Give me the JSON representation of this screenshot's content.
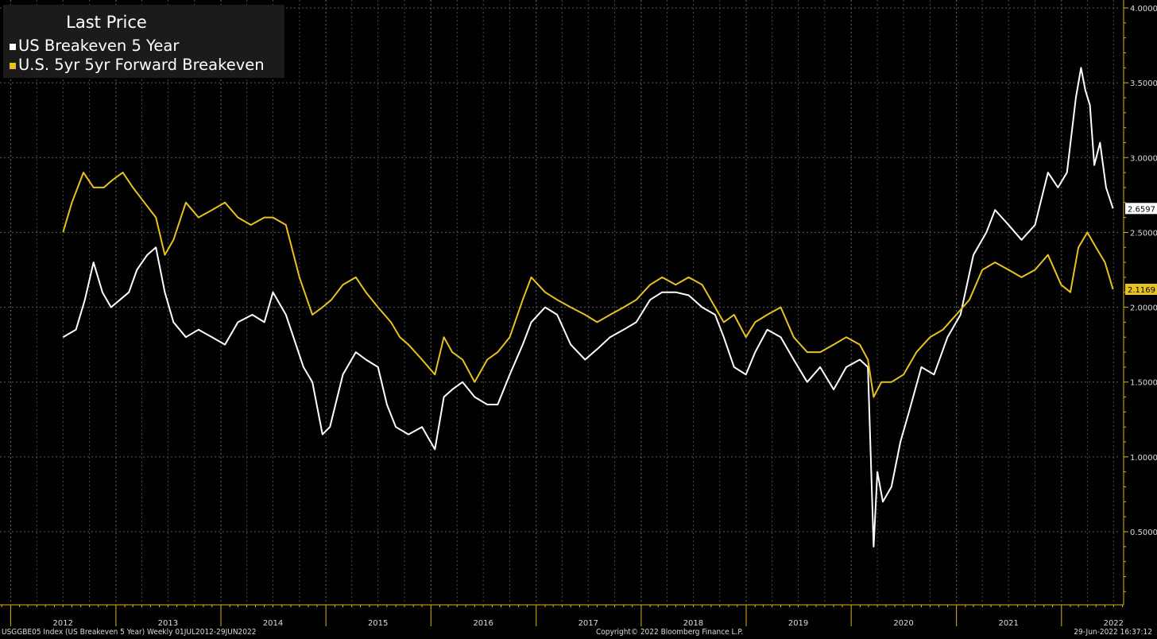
{
  "legend": {
    "title": "Last Price",
    "items": [
      {
        "label": "US Breakeven 5 Year",
        "color": "#ffffff"
      },
      {
        "label": "U.S. 5yr 5yr Forward Breakeven",
        "color": "#e6c31f"
      }
    ]
  },
  "footer": {
    "left": "USGGBE05 Index (US Breakeven 5 Year)  Weekly 01JUL2012-29JUN2022",
    "center": "Copyright© 2022 Bloomberg Finance L.P.",
    "right": "29-Jun-2022 16:37:12"
  },
  "chart_data": {
    "type": "line",
    "x_axis": {
      "type": "date",
      "range": [
        "2012-07-01",
        "2022-06-29"
      ],
      "tick_labels": [
        "2012",
        "2013",
        "2014",
        "2015",
        "2016",
        "2017",
        "2018",
        "2019",
        "2020",
        "2021",
        "2022"
      ]
    },
    "y_axis": {
      "position": "right",
      "ylim": [
        0.1,
        4.0
      ],
      "ticks": [
        0.5,
        1.0,
        1.5,
        2.0,
        2.5,
        3.0,
        3.5,
        4.0
      ],
      "tick_labels": [
        "0.5000",
        "1.0000",
        "1.5000",
        "2.0000",
        "2.5000",
        "3.0000",
        "3.5000",
        "4.0000"
      ]
    },
    "grid": true,
    "legend_position": "top-left",
    "series": [
      {
        "name": "US Breakeven 5 Year",
        "color": "#ffffff",
        "last_value_label": "2.6597",
        "x": [
          "2012-07-01",
          "2012-08-15",
          "2012-09-15",
          "2012-10-15",
          "2012-11-15",
          "2012-12-15",
          "2013-01-15",
          "2013-02-15",
          "2013-03-15",
          "2013-04-20",
          "2013-05-20",
          "2013-06-20",
          "2013-07-20",
          "2013-09-01",
          "2013-10-15",
          "2013-12-01",
          "2014-01-15",
          "2014-03-01",
          "2014-04-20",
          "2014-06-01",
          "2014-07-01",
          "2014-08-15",
          "2014-10-15",
          "2014-11-15",
          "2014-12-20",
          "2015-01-15",
          "2015-03-01",
          "2015-04-15",
          "2015-05-20",
          "2015-07-01",
          "2015-08-01",
          "2015-09-01",
          "2015-10-15",
          "2015-12-01",
          "2016-01-15",
          "2016-02-15",
          "2016-03-15",
          "2016-04-20",
          "2016-06-01",
          "2016-07-15",
          "2016-08-20",
          "2016-10-01",
          "2016-11-15",
          "2016-12-15",
          "2017-02-01",
          "2017-03-15",
          "2017-05-01",
          "2017-06-20",
          "2017-08-01",
          "2017-09-15",
          "2017-11-01",
          "2017-12-15",
          "2018-02-01",
          "2018-03-15",
          "2018-05-01",
          "2018-06-15",
          "2018-08-01",
          "2018-09-15",
          "2018-10-15",
          "2018-11-20",
          "2018-12-31",
          "2019-02-01",
          "2019-03-15",
          "2019-05-01",
          "2019-06-15",
          "2019-08-01",
          "2019-09-15",
          "2019-11-01",
          "2019-12-15",
          "2020-01-31",
          "2020-02-28",
          "2020-03-19",
          "2020-04-01",
          "2020-04-20",
          "2020-05-20",
          "2020-06-20",
          "2020-07-20",
          "2020-09-01",
          "2020-10-15",
          "2020-12-01",
          "2021-01-15",
          "2021-03-01",
          "2021-04-15",
          "2021-05-15",
          "2021-07-01",
          "2021-08-15",
          "2021-10-01",
          "2021-11-15",
          "2021-12-20",
          "2022-01-20",
          "2022-02-20",
          "2022-03-10",
          "2022-03-25",
          "2022-04-10",
          "2022-04-25",
          "2022-05-15",
          "2022-06-05",
          "2022-06-29"
        ],
        "values": [
          1.8,
          1.85,
          2.05,
          2.3,
          2.1,
          2.0,
          2.05,
          2.1,
          2.25,
          2.35,
          2.4,
          2.1,
          1.9,
          1.8,
          1.85,
          1.8,
          1.75,
          1.9,
          1.95,
          1.9,
          2.1,
          1.95,
          1.6,
          1.5,
          1.15,
          1.2,
          1.55,
          1.7,
          1.65,
          1.6,
          1.35,
          1.2,
          1.15,
          1.2,
          1.05,
          1.4,
          1.45,
          1.5,
          1.4,
          1.35,
          1.35,
          1.55,
          1.75,
          1.9,
          2.0,
          1.95,
          1.75,
          1.65,
          1.72,
          1.8,
          1.85,
          1.9,
          2.05,
          2.1,
          2.1,
          2.08,
          2.0,
          1.95,
          1.8,
          1.6,
          1.55,
          1.7,
          1.85,
          1.8,
          1.65,
          1.5,
          1.6,
          1.45,
          1.6,
          1.65,
          1.6,
          0.4,
          0.9,
          0.7,
          0.8,
          1.1,
          1.3,
          1.6,
          1.55,
          1.8,
          1.95,
          2.35,
          2.5,
          2.65,
          2.55,
          2.45,
          2.55,
          2.9,
          2.8,
          2.9,
          3.4,
          3.6,
          3.45,
          3.35,
          2.95,
          3.1,
          2.8,
          2.66
        ]
      },
      {
        "name": "U.S. 5yr 5yr Forward Breakeven",
        "color": "#e6c31f",
        "last_value_label": "2.1169",
        "x": [
          "2012-07-01",
          "2012-08-01",
          "2012-09-10",
          "2012-10-15",
          "2012-11-20",
          "2012-12-20",
          "2013-01-25",
          "2013-03-01",
          "2013-04-10",
          "2013-05-20",
          "2013-06-20",
          "2013-07-20",
          "2013-09-01",
          "2013-10-15",
          "2013-12-01",
          "2014-01-15",
          "2014-03-01",
          "2014-04-15",
          "2014-06-01",
          "2014-07-01",
          "2014-08-15",
          "2014-10-01",
          "2014-11-15",
          "2014-12-20",
          "2015-01-20",
          "2015-03-01",
          "2015-04-15",
          "2015-05-20",
          "2015-07-01",
          "2015-08-15",
          "2015-09-15",
          "2015-10-15",
          "2015-12-01",
          "2016-01-15",
          "2016-02-15",
          "2016-03-15",
          "2016-04-20",
          "2016-06-01",
          "2016-07-15",
          "2016-08-20",
          "2016-10-01",
          "2016-11-15",
          "2016-12-15",
          "2017-02-01",
          "2017-03-15",
          "2017-05-01",
          "2017-06-20",
          "2017-08-01",
          "2017-09-15",
          "2017-11-01",
          "2017-12-15",
          "2018-02-01",
          "2018-03-15",
          "2018-05-01",
          "2018-06-15",
          "2018-08-01",
          "2018-09-15",
          "2018-10-15",
          "2018-11-20",
          "2018-12-31",
          "2019-02-01",
          "2019-03-15",
          "2019-05-01",
          "2019-06-15",
          "2019-08-01",
          "2019-09-15",
          "2019-11-01",
          "2019-12-15",
          "2020-01-31",
          "2020-02-28",
          "2020-03-19",
          "2020-04-15",
          "2020-05-20",
          "2020-07-01",
          "2020-08-15",
          "2020-10-01",
          "2020-11-15",
          "2020-12-31",
          "2021-02-15",
          "2021-04-01",
          "2021-05-15",
          "2021-07-01",
          "2021-08-15",
          "2021-10-01",
          "2021-11-15",
          "2021-12-31",
          "2022-02-01",
          "2022-03-01",
          "2022-04-01",
          "2022-05-01",
          "2022-06-01",
          "2022-06-29"
        ],
        "values": [
          2.5,
          2.7,
          2.9,
          2.8,
          2.8,
          2.85,
          2.9,
          2.8,
          2.7,
          2.6,
          2.35,
          2.45,
          2.7,
          2.6,
          2.65,
          2.7,
          2.6,
          2.55,
          2.6,
          2.6,
          2.55,
          2.2,
          1.95,
          2.0,
          2.05,
          2.15,
          2.2,
          2.1,
          2.0,
          1.9,
          1.8,
          1.75,
          1.65,
          1.55,
          1.8,
          1.7,
          1.65,
          1.5,
          1.65,
          1.7,
          1.8,
          2.05,
          2.2,
          2.1,
          2.05,
          2.0,
          1.95,
          1.9,
          1.95,
          2.0,
          2.05,
          2.15,
          2.2,
          2.15,
          2.2,
          2.15,
          2.0,
          1.9,
          1.95,
          1.8,
          1.9,
          1.95,
          2.0,
          1.8,
          1.7,
          1.7,
          1.75,
          1.8,
          1.75,
          1.65,
          1.4,
          1.5,
          1.5,
          1.55,
          1.7,
          1.8,
          1.85,
          1.95,
          2.05,
          2.25,
          2.3,
          2.25,
          2.2,
          2.25,
          2.35,
          2.15,
          2.1,
          2.4,
          2.5,
          2.4,
          2.3,
          2.12
        ]
      }
    ]
  }
}
